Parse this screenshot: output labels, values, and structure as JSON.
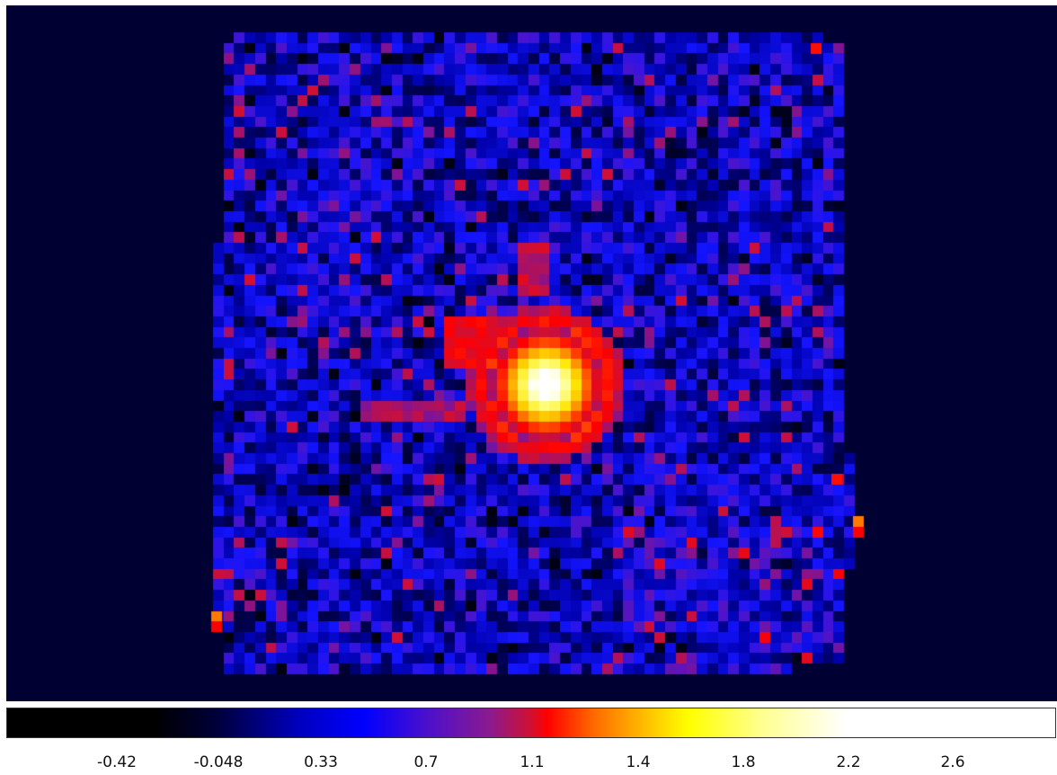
{
  "image": {
    "subject": "false-color astronomical intensity map",
    "background_color": "#000033",
    "colormap": "heat",
    "colors": {
      "black": "#000000",
      "blue": "#0000ff",
      "red": "#ff0000",
      "yellow": "#ffff00",
      "white": "#ffffff"
    }
  },
  "colorbar": {
    "ticks": [
      "-0.42",
      "-0.048",
      "0.33",
      "0.7",
      "1.1",
      "1.4",
      "1.8",
      "2.2",
      "2.6"
    ],
    "min_value": -0.7,
    "max_value": 2.95
  }
}
